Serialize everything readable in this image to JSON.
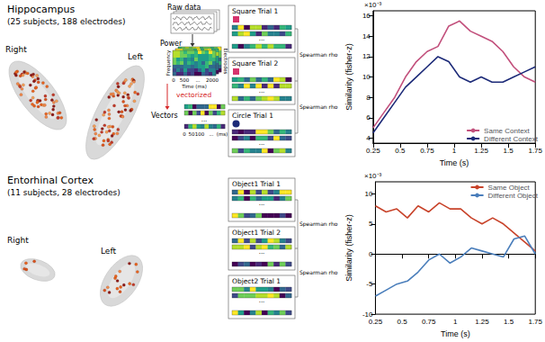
{
  "panels": [
    {
      "region": "Hippocampus",
      "details": "(25 subjects, 188 electrodes)",
      "hemispheres": [
        "Right",
        "Left"
      ],
      "pipeline": {
        "raw": "Raw data",
        "power": "Power",
        "frequency": "Frequency",
        "time_axis": "Time (ms)",
        "time_ticks": [
          "0",
          "500",
          "...",
          "2000"
        ],
        "electrodes": "Electrodes",
        "vectorized": "vectorized",
        "vectors": "Vectors",
        "vector_ticks": [
          "0",
          "50",
          "100",
          "...",
          "(ms)"
        ]
      },
      "trials": [
        "Square Trial 1",
        "Square Trial 2",
        "Circle Trial 1"
      ],
      "ellipsis": "...",
      "comparison": "Spearman rho"
    },
    {
      "region": "Entorhinal Cortex",
      "details": "(11 subjects, 28 electrodes)",
      "hemispheres": [
        "Right",
        "Left"
      ],
      "trials": [
        "Object1 Trial 1",
        "Object1 Trial 2",
        "Object2 Trial 1"
      ],
      "ellipsis": "...",
      "comparison": "Spearman rho"
    }
  ],
  "chart_data": [
    {
      "type": "line",
      "xlabel": "Time (s)",
      "ylabel": "Similarity (fisher-z)",
      "annotation": "×10⁻³",
      "x": [
        0.25,
        0.35,
        0.45,
        0.55,
        0.65,
        0.75,
        0.85,
        0.95,
        1.05,
        1.15,
        1.25,
        1.35,
        1.45,
        1.55,
        1.65,
        1.75
      ],
      "xlim": [
        0.25,
        1.75
      ],
      "xticks": [
        0.25,
        0.5,
        0.75,
        1,
        1.25,
        1.5,
        1.75
      ],
      "ylim": [
        3.5,
        16.5
      ],
      "yticks": [
        4,
        6,
        8,
        10,
        12,
        14,
        16
      ],
      "grid": false,
      "legend": "lower right",
      "series": [
        {
          "name": "Same Context",
          "color": "#c2507c",
          "values": [
            5.0,
            6.5,
            8.0,
            10.0,
            11.5,
            12.5,
            13.0,
            15.0,
            15.5,
            14.5,
            14.0,
            13.5,
            12.5,
            11.0,
            10.0,
            9.5
          ]
        },
        {
          "name": "Different Context",
          "color": "#1c2a78",
          "values": [
            4.5,
            6.0,
            7.5,
            9.0,
            10.0,
            11.0,
            12.0,
            11.5,
            10.0,
            9.5,
            10.0,
            9.5,
            9.5,
            10.0,
            10.5,
            11.0
          ]
        }
      ]
    },
    {
      "type": "line",
      "xlabel": "Time (s)",
      "ylabel": "Similarity (fisher-z)",
      "annotation": "×10⁻³",
      "x": [
        0.25,
        0.35,
        0.45,
        0.55,
        0.65,
        0.75,
        0.85,
        0.95,
        1.05,
        1.15,
        1.25,
        1.35,
        1.45,
        1.55,
        1.65,
        1.75
      ],
      "xlim": [
        0.25,
        1.75
      ],
      "xticks": [
        0.25,
        0.5,
        0.75,
        1,
        1.25,
        1.5,
        1.75
      ],
      "ylim": [
        -10,
        12
      ],
      "yticks": [
        -10,
        -5,
        0,
        5,
        10
      ],
      "grid": false,
      "legend": "upper right",
      "series": [
        {
          "name": "Same Object",
          "color": "#c8432a",
          "values": [
            8.0,
            7.0,
            7.5,
            6.0,
            8.0,
            7.0,
            8.5,
            7.5,
            7.5,
            6.0,
            5.0,
            6.0,
            5.0,
            3.5,
            2.0,
            0.5
          ]
        },
        {
          "name": "Different Object",
          "color": "#4a7ebb",
          "values": [
            -7.0,
            -6.0,
            -5.0,
            -4.5,
            -3.0,
            -1.0,
            0.0,
            -1.5,
            -0.5,
            1.0,
            0.5,
            0.0,
            -0.5,
            2.5,
            3.0,
            0.0
          ]
        }
      ]
    }
  ]
}
